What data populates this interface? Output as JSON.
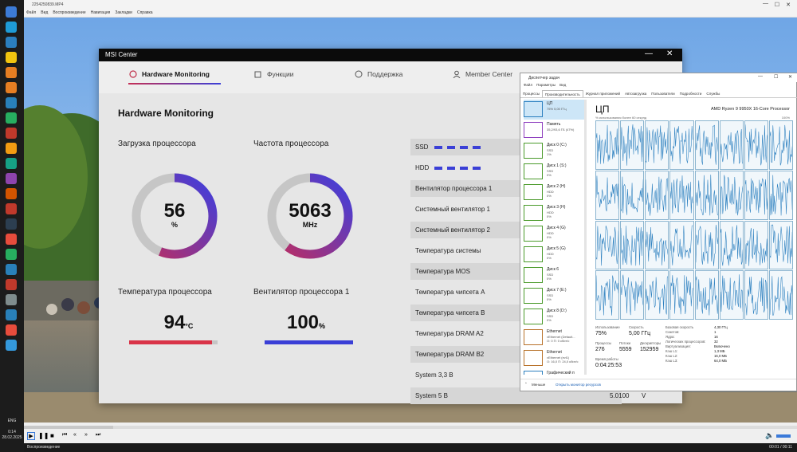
{
  "player": {
    "title": "2254250839.MP4",
    "menu": [
      "Файл",
      "Вид",
      "Воспроизведение",
      "Навигация",
      "Закладки",
      "Справка"
    ],
    "status": "Воспроизведение",
    "time": "00:01 / 00:11"
  },
  "taskbar": {
    "lang": "ENG",
    "time": "0:14",
    "date": "28.02.2025"
  },
  "msi": {
    "title": "MSI Center",
    "tabs": [
      {
        "label": "Hardware Monitoring",
        "icon": "monitor-icon"
      },
      {
        "label": "Функции",
        "icon": "features-icon"
      },
      {
        "label": "Поддержка",
        "icon": "support-icon"
      },
      {
        "label": "Member Center",
        "icon": "user-icon"
      }
    ],
    "heading": "Hardware Monitoring",
    "cpu_load": {
      "label": "Загрузка процессора",
      "value": "56",
      "unit": "%",
      "fraction": 0.56
    },
    "cpu_freq": {
      "label": "Частота процессора",
      "value": "5063",
      "unit": "MHz",
      "fraction": 0.6
    },
    "cpu_temp": {
      "label": "Температура процессора",
      "value": "94",
      "unit": "°C",
      "fraction": 0.94
    },
    "fan1": {
      "label": "Вентилятор процессора 1",
      "value": "100",
      "unit": "%",
      "fraction": 1.0
    },
    "rows": [
      {
        "label": "SSD",
        "value": "",
        "unit": ""
      },
      {
        "label": "HDD",
        "value": "",
        "unit": ""
      },
      {
        "label": "Вентилятор процессора 1",
        "value": "",
        "unit": ""
      },
      {
        "label": "Системный вентилятор 1",
        "value": "",
        "unit": ""
      },
      {
        "label": "Системный вентилятор 2",
        "value": "",
        "unit": ""
      },
      {
        "label": "Температура системы",
        "value": "",
        "unit": ""
      },
      {
        "label": "Температура MOS",
        "value": "",
        "unit": ""
      },
      {
        "label": "Температура чипсета A",
        "value": "",
        "unit": ""
      },
      {
        "label": "Температура чипсета B",
        "value": "",
        "unit": ""
      },
      {
        "label": "Температура DRAM A2",
        "value": "",
        "unit": ""
      },
      {
        "label": "Температура DRAM B2",
        "value": "",
        "unit": ""
      },
      {
        "label": "System 3,3 В",
        "value": "",
        "unit": ""
      },
      {
        "label": "System 5 В",
        "value": "5.0100",
        "unit": "V"
      }
    ]
  },
  "tm": {
    "title": "Диспетчер задач",
    "menu": [
      "Файл",
      "Параметры",
      "Вид"
    ],
    "tabs": [
      "Процессы",
      "Производительность",
      "Журнал приложений",
      "Автозагрузка",
      "Пользователи",
      "Подробности",
      "Службы"
    ],
    "resources": [
      {
        "name": "ЦП",
        "l1": "75% 5,00 ГГц",
        "l2": ""
      },
      {
        "name": "Память",
        "l1": "35,2/93,6 ГБ (47%)",
        "l2": ""
      },
      {
        "name": "Диск 0 (C:)",
        "l1": "SSD",
        "l2": "1%"
      },
      {
        "name": "Диск 1 (S:)",
        "l1": "SSD",
        "l2": "0%"
      },
      {
        "name": "Диск 2 (H)",
        "l1": "HDD",
        "l2": "0%"
      },
      {
        "name": "Диск 3 (H)",
        "l1": "HDD",
        "l2": "0%"
      },
      {
        "name": "Диск 4 (G)",
        "l1": "HDD",
        "l2": "0%"
      },
      {
        "name": "Диск 5 (G)",
        "l1": "HDD",
        "l2": "0%"
      },
      {
        "name": "Диск 6",
        "l1": "SSD",
        "l2": "0%"
      },
      {
        "name": "Диск 7 (E:)",
        "l1": "SSD",
        "l2": "0%"
      },
      {
        "name": "Диск 8 (D:)",
        "l1": "SSD",
        "l2": "0%"
      },
      {
        "name": "Ethernet",
        "l1": "vEthernet (Default...",
        "l2": "О: 0 П: 0 кбит/с"
      },
      {
        "name": "Ethernet",
        "l1": "vEthernet (evl1)",
        "l2": "О: 16,0 П: 24,0 кбит/с"
      },
      {
        "name": "Графический п",
        "l1": "NVIDIA GeForce RTX",
        "l2": ""
      }
    ],
    "cpu_heading": "ЦП",
    "cpu_model": "AMD Ryzen 9 9950X 16-Core Processor",
    "graph_caption": "% использования более 60 секунд",
    "graph_max": "100%",
    "stats": {
      "usage_label": "Использование",
      "usage": "75%",
      "speed_label": "Скорость",
      "speed": "5,00 ГГц",
      "proc_label": "Процессы",
      "proc": "276",
      "threads_label": "Потоки",
      "threads": "5559",
      "handles_label": "Дескрипторы",
      "handles": "152959",
      "uptime_label": "Время работы",
      "uptime": "0:04:25:53"
    },
    "details": [
      [
        "Базовая скорость",
        "4,30 ГГц"
      ],
      [
        "Сокетов:",
        "1"
      ],
      [
        "Ядра:",
        "16"
      ],
      [
        "Логических процессоров:",
        "32"
      ],
      [
        "Виртуализация:",
        "Включено"
      ],
      [
        "Кэш L1:",
        "1,3 МБ"
      ],
      [
        "Кэш L2:",
        "16,0 МБ"
      ],
      [
        "Кэш L3:",
        "64,0 МБ"
      ]
    ],
    "less": "Меньше",
    "open_monitor": "Открыть монитор ресурсов"
  }
}
